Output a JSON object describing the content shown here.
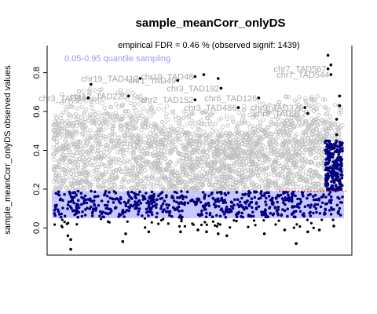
{
  "chart_data": {
    "type": "scatter",
    "title": "sample_meanCorr_onlyDS",
    "subtitle": "empirical FDR = 0.46 % (observed signif: 1439)",
    "xlabel": "",
    "ylabel": "sample_meanCorr_onlyDS observed values",
    "ylim": [
      -0.14,
      0.94
    ],
    "yticks": [
      0.0,
      0.2,
      0.4,
      0.6,
      0.8
    ],
    "xlim": [
      0,
      1
    ],
    "grid": false,
    "legend": "none",
    "band_label": "0.05-0.95 quantile sampling",
    "quantile_band": [
      0.05,
      0.19
    ],
    "threshold_y": 0.19,
    "colors": {
      "observed": "#bebebe",
      "significant": "#000080",
      "band": "#c8c8ff",
      "band_label": "#9999ff",
      "threshold": "#ff0000",
      "axis": "#000000"
    },
    "labeled_points": [
      {
        "label": "chr7_TAD567",
        "x": 0.95,
        "y": 0.82
      },
      {
        "label": "chr7_TAD544",
        "x": 0.96,
        "y": 0.79
      },
      {
        "label": "chr19_TAD412",
        "x": 0.3,
        "y": 0.77
      },
      {
        "label": "chr19_TAD48",
        "x": 0.49,
        "y": 0.78
      },
      {
        "label": "chr1_TAD49",
        "x": 0.43,
        "y": 0.76
      },
      {
        "label": "chr3_TAD192",
        "x": 0.58,
        "y": 0.72
      },
      {
        "label": "chr12_TAD220",
        "x": 0.26,
        "y": 0.68
      },
      {
        "label": "chr3_TAD36",
        "x": 0.12,
        "y": 0.67
      },
      {
        "label": "chr6_TAD126",
        "x": 0.71,
        "y": 0.67
      },
      {
        "label": "chr2_TAD152",
        "x": 0.49,
        "y": 0.66
      },
      {
        "label": "chr9_TAD379",
        "x": 0.87,
        "y": 0.62
      },
      {
        "label": "chr3_TAD486",
        "x": 0.64,
        "y": 0.62
      },
      {
        "label": "chr8_TAD212",
        "x": 0.88,
        "y": 0.59
      }
    ],
    "outlier_points": [
      {
        "x": 0.06,
        "y": -0.06
      },
      {
        "x": 0.06,
        "y": -0.11
      },
      {
        "x": 0.05,
        "y": -0.04
      },
      {
        "x": 0.24,
        "y": -0.07
      },
      {
        "x": 0.25,
        "y": -0.03
      },
      {
        "x": 0.44,
        "y": -0.02
      },
      {
        "x": 0.5,
        "y": -0.01
      },
      {
        "x": 0.53,
        "y": -0.02
      },
      {
        "x": 0.57,
        "y": -0.03
      },
      {
        "x": 0.6,
        "y": -0.04
      },
      {
        "x": 0.73,
        "y": -0.03
      },
      {
        "x": 0.8,
        "y": -0.01
      },
      {
        "x": 0.84,
        "y": -0.08
      },
      {
        "x": 0.88,
        "y": -0.02
      },
      {
        "x": 0.33,
        "y": -0.02
      },
      {
        "x": 0.92,
        "y": -0.01
      },
      {
        "x": 0.97,
        "y": 0.01
      },
      {
        "x": 0.99,
        "y": 0.68
      },
      {
        "x": 0.99,
        "y": 0.63
      },
      {
        "x": 0.98,
        "y": 0.56
      },
      {
        "x": 0.98,
        "y": 0.48
      },
      {
        "x": 0.97,
        "y": 0.41
      },
      {
        "x": 0.95,
        "y": 0.89
      },
      {
        "x": 0.96,
        "y": 0.84
      },
      {
        "x": 0.13,
        "y": 0.74
      },
      {
        "x": 0.52,
        "y": 0.79
      },
      {
        "x": 0.57,
        "y": 0.77
      }
    ]
  }
}
